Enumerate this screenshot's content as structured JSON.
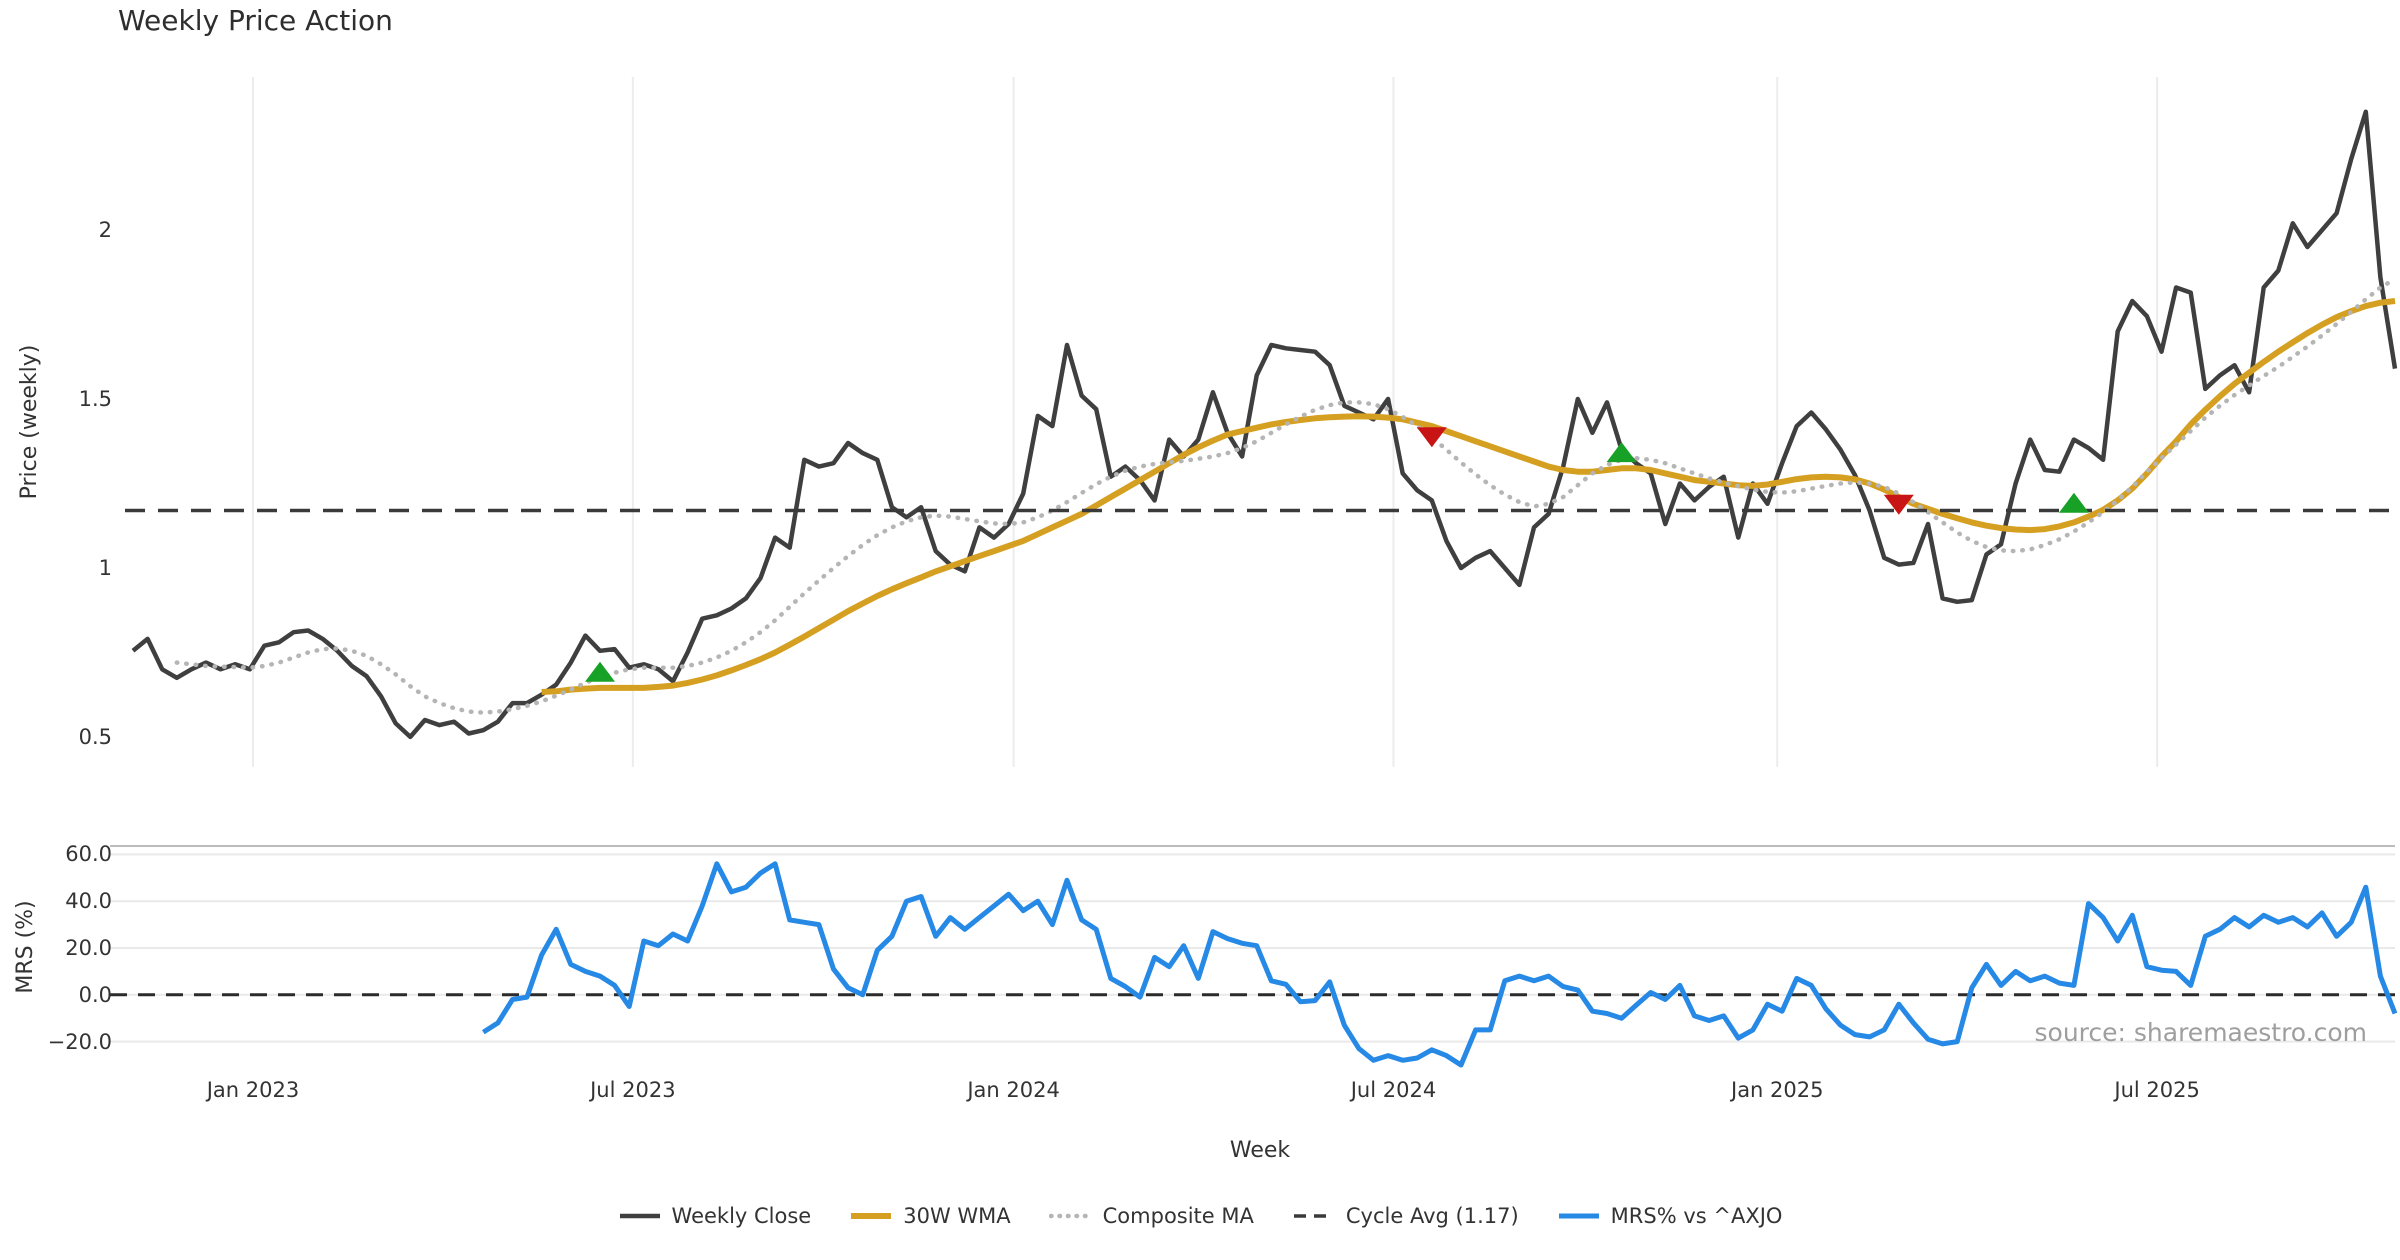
{
  "chart_data": {
    "type": "line",
    "title": "Weekly Price Action",
    "source": "source: sharemaestro.com",
    "x": {
      "label": "Week",
      "ticks": [
        {
          "label": "Jan 2023",
          "week": 8.22
        },
        {
          "label": "Jul 2023",
          "week": 34.25
        },
        {
          "label": "Jan 2024",
          "week": 60.34
        },
        {
          "label": "Jul 2024",
          "week": 86.37
        },
        {
          "label": "Jan 2025",
          "week": 112.67
        },
        {
          "label": "Jul 2025",
          "week": 138.7
        }
      ],
      "weeks_total": 156
    },
    "panels": [
      {
        "ylabel": "Price (weekly)",
        "ylim": [
          0.411,
          2.453
        ],
        "yticks": [
          {
            "label": "0.5",
            "value": 0.5
          },
          {
            "label": "1",
            "value": 1
          },
          {
            "label": "1.5",
            "value": 1.5
          },
          {
            "label": "2",
            "value": 2
          }
        ],
        "grid": {
          "vertical": true,
          "horizontal": false
        },
        "series": [
          {
            "label": "Weekly Close",
            "type": "line",
            "color": "#3f3f3f",
            "width": 4.5,
            "dash": "solid",
            "start_week": 0,
            "values": [
              0.755,
              0.79,
              0.7,
              0.675,
              0.7,
              0.72,
              0.7,
              0.715,
              0.7,
              0.77,
              0.78,
              0.81,
              0.815,
              0.79,
              0.755,
              0.71,
              0.68,
              0.62,
              0.54,
              0.5,
              0.55,
              0.535,
              0.545,
              0.51,
              0.52,
              0.545,
              0.6,
              0.6,
              0.625,
              0.655,
              0.72,
              0.8,
              0.755,
              0.76,
              0.705,
              0.715,
              0.7,
              0.665,
              0.75,
              0.85,
              0.86,
              0.88,
              0.91,
              0.97,
              1.09,
              1.06,
              1.32,
              1.3,
              1.31,
              1.37,
              1.34,
              1.32,
              1.18,
              1.15,
              1.18,
              1.05,
              1.01,
              0.99,
              1.12,
              1.09,
              1.13,
              1.22,
              1.45,
              1.42,
              1.66,
              1.51,
              1.47,
              1.27,
              1.3,
              1.26,
              1.2,
              1.38,
              1.33,
              1.38,
              1.52,
              1.4,
              1.33,
              1.57,
              1.66,
              1.65,
              1.645,
              1.64,
              1.6,
              1.48,
              1.46,
              1.44,
              1.5,
              1.28,
              1.23,
              1.2,
              1.08,
              1.0,
              1.03,
              1.05,
              1.0,
              0.95,
              1.12,
              1.16,
              1.3,
              1.5,
              1.4,
              1.49,
              1.35,
              1.31,
              1.28,
              1.13,
              1.25,
              1.2,
              1.24,
              1.27,
              1.09,
              1.25,
              1.19,
              1.31,
              1.42,
              1.46,
              1.41,
              1.35,
              1.275,
              1.17,
              1.03,
              1.01,
              1.015,
              1.13,
              0.91,
              0.9,
              0.905,
              1.04,
              1.07,
              1.25,
              1.38,
              1.29,
              1.285,
              1.38,
              1.355,
              1.32,
              1.7,
              1.79,
              1.745,
              1.64,
              1.83,
              1.815,
              1.53,
              1.57,
              1.6,
              1.52,
              1.83,
              1.88,
              2.02,
              1.95,
              2.0,
              2.05,
              2.21,
              2.35,
              1.86,
              1.59
            ]
          },
          {
            "label": "30W WMA",
            "type": "line",
            "color": "#d5a021",
            "width": 6,
            "dash": "solid",
            "start_week": 28,
            "values": [
              0.633,
              0.635,
              0.64,
              0.643,
              0.645,
              0.645,
              0.645,
              0.645,
              0.648,
              0.652,
              0.66,
              0.67,
              0.682,
              0.697,
              0.713,
              0.73,
              0.75,
              0.773,
              0.797,
              0.822,
              0.847,
              0.872,
              0.895,
              0.917,
              0.937,
              0.955,
              0.972,
              0.99,
              1.005,
              1.02,
              1.035,
              1.05,
              1.065,
              1.08,
              1.1,
              1.12,
              1.14,
              1.16,
              1.185,
              1.21,
              1.235,
              1.26,
              1.285,
              1.31,
              1.335,
              1.357,
              1.377,
              1.395,
              1.405,
              1.415,
              1.425,
              1.432,
              1.438,
              1.443,
              1.446,
              1.448,
              1.449,
              1.448,
              1.445,
              1.44,
              1.43,
              1.42,
              1.405,
              1.39,
              1.375,
              1.36,
              1.345,
              1.33,
              1.315,
              1.3,
              1.29,
              1.285,
              1.285,
              1.29,
              1.295,
              1.295,
              1.29,
              1.28,
              1.27,
              1.26,
              1.255,
              1.25,
              1.245,
              1.243,
              1.247,
              1.255,
              1.263,
              1.268,
              1.27,
              1.268,
              1.262,
              1.25,
              1.232,
              1.21,
              1.19,
              1.175,
              1.16,
              1.147,
              1.135,
              1.125,
              1.118,
              1.114,
              1.112,
              1.115,
              1.123,
              1.135,
              1.152,
              1.172,
              1.2,
              1.235,
              1.28,
              1.33,
              1.375,
              1.425,
              1.468,
              1.508,
              1.545,
              1.578,
              1.61,
              1.64,
              1.668,
              1.695,
              1.72,
              1.742,
              1.76,
              1.775,
              1.785,
              1.79
            ]
          },
          {
            "label": "Composite MA",
            "type": "line",
            "color": "#b5b5b5",
            "width": 4.5,
            "dash": "dotted",
            "start_week": 3,
            "values": [
              0.72,
              0.715,
              0.71,
              0.708,
              0.707,
              0.705,
              0.71,
              0.72,
              0.735,
              0.75,
              0.76,
              0.762,
              0.755,
              0.74,
              0.715,
              0.685,
              0.65,
              0.62,
              0.6,
              0.585,
              0.575,
              0.572,
              0.575,
              0.582,
              0.592,
              0.605,
              0.622,
              0.64,
              0.66,
              0.678,
              0.69,
              0.7,
              0.705,
              0.705,
              0.705,
              0.71,
              0.72,
              0.735,
              0.755,
              0.78,
              0.81,
              0.845,
              0.885,
              0.925,
              0.963,
              1.0,
              1.035,
              1.068,
              1.097,
              1.12,
              1.138,
              1.15,
              1.155,
              1.152,
              1.145,
              1.138,
              1.132,
              1.13,
              1.135,
              1.15,
              1.17,
              1.195,
              1.222,
              1.248,
              1.27,
              1.288,
              1.3,
              1.308,
              1.313,
              1.317,
              1.323,
              1.33,
              1.34,
              1.355,
              1.375,
              1.4,
              1.425,
              1.448,
              1.468,
              1.482,
              1.49,
              1.49,
              1.485,
              1.47,
              1.447,
              1.42,
              1.387,
              1.35,
              1.312,
              1.277,
              1.245,
              1.217,
              1.195,
              1.182,
              1.19,
              1.21,
              1.245,
              1.28,
              1.305,
              1.32,
              1.325,
              1.32,
              1.31,
              1.295,
              1.28,
              1.265,
              1.253,
              1.242,
              1.232,
              1.225,
              1.223,
              1.227,
              1.235,
              1.243,
              1.25,
              1.253,
              1.25,
              1.24,
              1.22,
              1.195,
              1.165,
              1.135,
              1.105,
              1.08,
              1.062,
              1.052,
              1.05,
              1.055,
              1.068,
              1.085,
              1.108,
              1.135,
              1.165,
              1.2,
              1.24,
              1.285,
              1.325,
              1.365,
              1.405,
              1.445,
              1.48,
              1.512,
              1.54,
              1.568,
              1.595,
              1.625,
              1.655,
              1.688,
              1.722,
              1.758,
              1.795,
              1.83,
              1.855
            ]
          },
          {
            "label": "Cycle Avg (1.17)",
            "type": "hline",
            "color": "#3a3a3a",
            "width": 3.5,
            "dash": "dashed",
            "value": 1.17
          }
        ],
        "markers": [
          {
            "signal": "buy",
            "shape": "triangle-up",
            "color": "#18a127",
            "week": 32,
            "price": 0.69
          },
          {
            "signal": "sell",
            "shape": "triangle-down",
            "color": "#c81414",
            "week": 89,
            "price": 1.39
          },
          {
            "signal": "buy",
            "shape": "triangle-up",
            "color": "#18a127",
            "week": 102,
            "price": 1.34
          },
          {
            "signal": "sell",
            "shape": "triangle-down",
            "color": "#c81414",
            "week": 121,
            "price": 1.19
          },
          {
            "signal": "buy",
            "shape": "triangle-up",
            "color": "#18a127",
            "week": 133,
            "price": 1.19
          }
        ]
      },
      {
        "ylabel": "MRS (%)",
        "ylim": [
          -33.0,
          63.6
        ],
        "yticks": [
          {
            "label": "−20.0",
            "value": -20
          },
          {
            "label": "0.0",
            "value": 0
          },
          {
            "label": "20.0",
            "value": 20
          },
          {
            "label": "40.0",
            "value": 40
          },
          {
            "label": "60.0",
            "value": 60
          }
        ],
        "grid": {
          "vertical": false,
          "horizontal": true
        },
        "zero_line": {
          "value": 0,
          "color": "#2b2b2b",
          "width": 3,
          "dash": "dashed"
        },
        "series": [
          {
            "label": "MRS% vs ^AXJO",
            "type": "line",
            "color": "#2589e5",
            "width": 5,
            "dash": "solid",
            "start_week": 24,
            "values": [
              -16,
              -12,
              -2,
              -1,
              17,
              28,
              13,
              10,
              8,
              4,
              -5,
              23,
              21,
              26,
              23,
              38,
              56,
              44,
              46,
              52,
              56,
              32,
              31,
              30,
              11,
              3,
              0,
              19,
              25,
              40,
              42,
              25,
              33,
              28,
              33,
              38,
              43,
              36,
              40,
              30,
              49,
              32,
              28,
              7,
              3.5,
              -1,
              16,
              12,
              21,
              7,
              27,
              24,
              22,
              21,
              6,
              4.5,
              -3,
              -2.5,
              5.5,
              -13,
              -23,
              -28,
              -26,
              -28,
              -27,
              -23.5,
              -26,
              -30,
              -15,
              -15,
              6,
              8,
              6,
              8,
              3.5,
              2,
              -7,
              -8,
              -10,
              -4.5,
              1,
              -2,
              4,
              -9,
              -11,
              -9,
              -18.5,
              -15,
              -4,
              -7,
              7,
              4,
              -6,
              -13,
              -17,
              -18,
              -15,
              -4,
              -12,
              -19,
              -21,
              -20,
              3,
              13,
              4,
              10,
              6,
              8,
              5,
              4,
              39,
              33,
              23,
              34,
              12,
              10.5,
              10,
              4,
              25,
              28,
              33,
              29,
              34,
              31,
              33,
              29,
              35,
              25,
              31,
              46,
              8,
              -8
            ]
          }
        ]
      }
    ],
    "colors": {
      "grid_vertical": "#ececec",
      "grid_horizontal": "#e9e9e9",
      "panel_top_spine": "#bcbcbc",
      "text": "#333333",
      "source_text": "#9e9e9e"
    }
  }
}
